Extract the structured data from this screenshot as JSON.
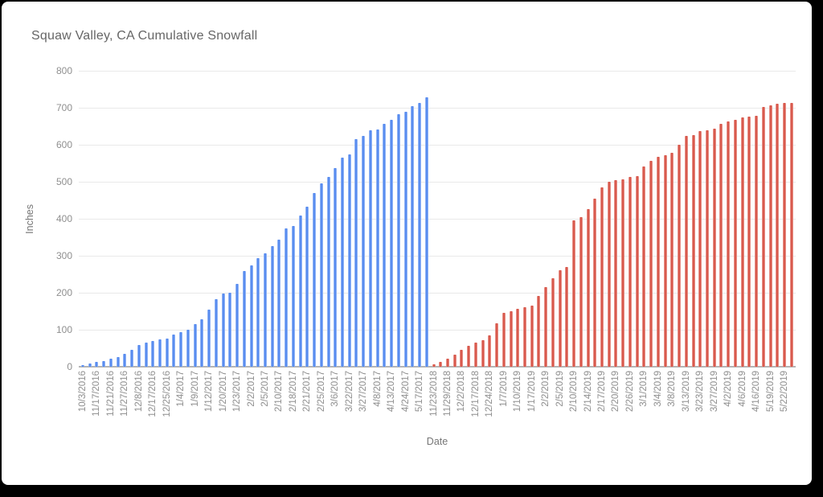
{
  "window": {
    "background": "#000000",
    "card_background": "#ffffff"
  },
  "chart_data": {
    "type": "bar",
    "title": "Squaw Valley, CA Cumulative Snowfall",
    "xlabel": "Date",
    "ylabel": "Inches",
    "ylim": [
      0,
      800
    ],
    "ytick_labels": [
      "800",
      "700",
      "600",
      "500",
      "400",
      "300",
      "200",
      "100",
      "0"
    ],
    "grid": true,
    "legend": "none",
    "label_every_n_bars": 2,
    "axis_colors": {
      "gridline": "#e9e9e9",
      "zero_line": "#b5b5b5",
      "tick_text": "#8f8f8f",
      "axis_title_text": "#757575",
      "title_text": "#666666"
    },
    "series": [
      {
        "color": "#5a8def",
        "light_color": "#b3cdfa",
        "x_labels": [
          "10/3/2016",
          "11/17/2016",
          "11/21/2016",
          "11/27/2016",
          "12/8/2016",
          "12/17/2016",
          "12/25/2016",
          "1/4/2017",
          "1/9/2017",
          "1/12/2017",
          "1/20/2017",
          "1/23/2017",
          "2/2/2017",
          "2/5/2017",
          "2/10/2017",
          "2/18/2017",
          "2/21/2017",
          "2/25/2017",
          "3/6/2017",
          "3/22/2017",
          "3/27/2017",
          "4/8/2017",
          "4/13/2017",
          "4/24/2017",
          "5/17/2017"
        ],
        "values": [
          5,
          9,
          12,
          16,
          21,
          27,
          34,
          46,
          58,
          66,
          70,
          73,
          76,
          86,
          94,
          100,
          116,
          128,
          155,
          183,
          197,
          199,
          224,
          259,
          273,
          293,
          306,
          326,
          344,
          373,
          380,
          409,
          433,
          469,
          496,
          512,
          536,
          565,
          574,
          616,
          623,
          639,
          641,
          656,
          668,
          683,
          690,
          704,
          714,
          728
        ]
      },
      {
        "color": "#d85a4e",
        "light_color": "#f2b3ac",
        "x_labels": [
          "11/23/2018",
          "11/29/2018",
          "12/2/2018",
          "12/17/2018",
          "12/24/2018",
          "1/7/2019",
          "1/10/2019",
          "1/17/2019",
          "2/2/2019",
          "2/5/2019",
          "2/10/2019",
          "2/14/2019",
          "2/17/2019",
          "2/20/2019",
          "2/26/2019",
          "3/1/2019",
          "3/4/2019",
          "3/8/2019",
          "3/13/2019",
          "3/23/2019",
          "3/27/2019",
          "4/2/2019",
          "4/6/2019",
          "4/16/2019",
          "5/19/2019",
          "5/22/2019"
        ],
        "values": [
          7,
          14,
          22,
          33,
          46,
          56,
          65,
          72,
          84,
          117,
          146,
          150,
          157,
          161,
          166,
          192,
          215,
          240,
          260,
          270,
          395,
          404,
          427,
          455,
          485,
          500,
          505,
          507,
          512,
          516,
          541,
          556,
          568,
          572,
          578,
          600,
          623,
          627,
          636,
          639,
          644,
          656,
          662,
          668,
          673,
          676,
          678,
          702,
          706,
          710,
          713,
          714
        ]
      }
    ]
  }
}
